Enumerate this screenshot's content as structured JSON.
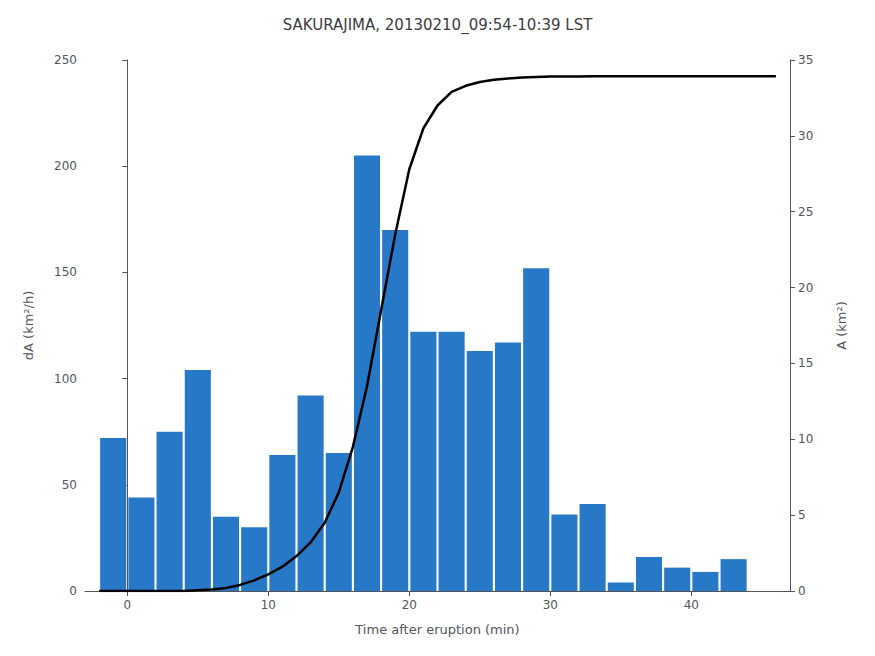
{
  "chart_data": {
    "type": "bar",
    "title": "SAKURAJIMA, 20130210_09:54-10:39 LST",
    "xlabel": "Time after eruption (min)",
    "ylabel": "dA (km²/h)",
    "y2label": "A (km²)",
    "xlim": [
      -3,
      47
    ],
    "xticks": [
      0,
      10,
      20,
      30,
      40
    ],
    "ylim": [
      0,
      250
    ],
    "yticks": [
      0,
      50,
      100,
      150,
      200,
      250
    ],
    "y2lim": [
      0,
      35
    ],
    "y2ticks": [
      0,
      5,
      10,
      15,
      20,
      25,
      30,
      35
    ],
    "grid": false,
    "series": [
      {
        "type": "bar",
        "color": "#2878c8",
        "x": [
          -1,
          1,
          3,
          5,
          7,
          9,
          11,
          13,
          15,
          17,
          19,
          21,
          23,
          25,
          27,
          29,
          31,
          33,
          35,
          37,
          39,
          41,
          43,
          45
        ],
        "values": [
          72,
          44,
          75,
          104,
          35,
          30,
          64,
          92,
          65,
          205,
          170,
          122,
          122,
          113,
          117,
          152,
          36,
          41,
          4,
          16,
          11,
          9,
          15,
          0
        ]
      },
      {
        "type": "line",
        "color": "#000000",
        "axis": "y2",
        "x": [
          -2,
          -1,
          0,
          1,
          2,
          3,
          4,
          5,
          6,
          7,
          8,
          9,
          10,
          11,
          12,
          13,
          14,
          15,
          16,
          17,
          18,
          19,
          20,
          21,
          22,
          23,
          24,
          25,
          26,
          27,
          28,
          29,
          30,
          31,
          32,
          33,
          34,
          35,
          36,
          37,
          38,
          39,
          40,
          41,
          42,
          43,
          44,
          45,
          46
        ],
        "values": [
          0,
          0,
          0,
          0,
          0,
          0,
          0,
          0.05,
          0.1,
          0.2,
          0.4,
          0.7,
          1.1,
          1.6,
          2.3,
          3.2,
          4.5,
          6.5,
          9.5,
          13.5,
          18.5,
          23.5,
          27.8,
          30.5,
          32.0,
          32.9,
          33.3,
          33.55,
          33.7,
          33.78,
          33.84,
          33.88,
          33.91,
          33.92,
          33.92,
          33.93,
          33.93,
          33.93,
          33.93,
          33.93,
          33.93,
          33.93,
          33.93,
          33.93,
          33.93,
          33.93,
          33.93,
          33.93,
          33.93
        ]
      }
    ]
  }
}
